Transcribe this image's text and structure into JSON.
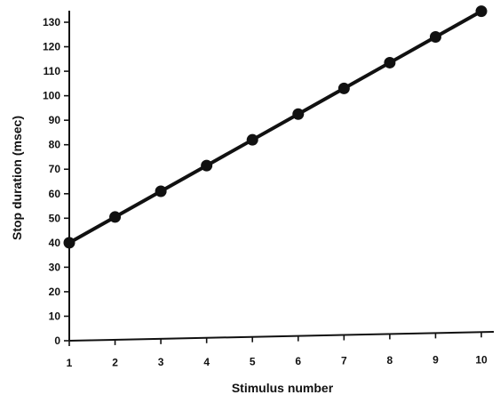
{
  "chart_data": {
    "type": "line",
    "title": "",
    "xlabel": "Stimulus number",
    "ylabel": "Stop duration (msec)",
    "xlim": [
      1,
      10
    ],
    "ylim": [
      0,
      130
    ],
    "x_ticks": [
      1,
      2,
      3,
      4,
      5,
      6,
      7,
      8,
      9,
      10
    ],
    "y_ticks": [
      0,
      10,
      20,
      30,
      40,
      50,
      60,
      70,
      80,
      90,
      100,
      110,
      120,
      130
    ],
    "grid": false,
    "legend": "none",
    "series": [
      {
        "x": [
          1,
          2,
          3,
          4,
          5,
          6,
          7,
          8,
          9,
          10
        ],
        "values": [
          40,
          50.5,
          61,
          71.5,
          82,
          92.5,
          103,
          113.5,
          124,
          134.5
        ]
      }
    ],
    "colors": {
      "line": "#111111",
      "marker": "#111111",
      "axis": "#111111"
    }
  }
}
